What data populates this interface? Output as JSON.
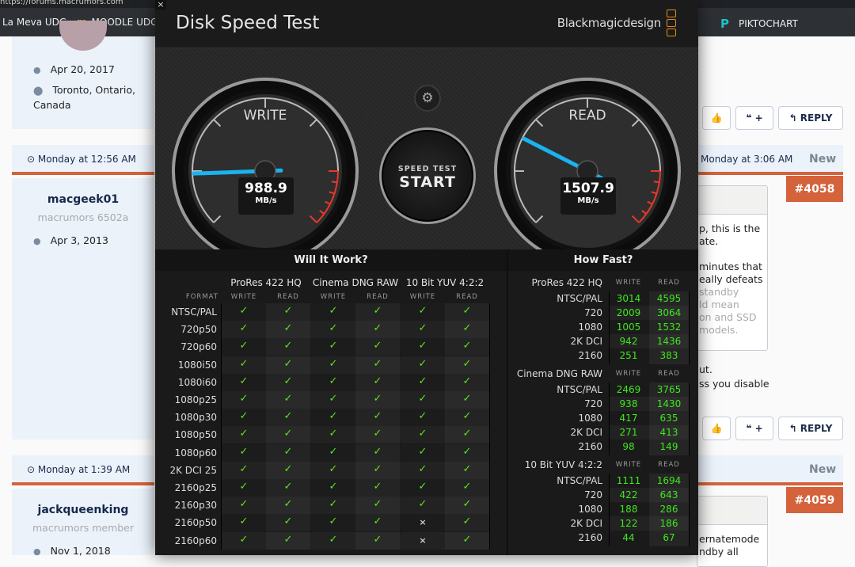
{
  "browser": {
    "url": "https://forums.macrumors.com",
    "bookmarks": [
      {
        "label": "La Meva UDG"
      },
      {
        "label": "MOODLE UDG"
      },
      {
        "label": "PIKTOCHART"
      }
    ]
  },
  "forum": {
    "post1": {
      "joined": "Apr 20, 2017",
      "location": "Toronto, Ontario, Canada"
    },
    "post2": {
      "time": "Monday at 12:56 AM",
      "username": "macgeek01",
      "user_title": "macrumors 6502a",
      "joined": "Apr 3, 2013",
      "right_time": "Monday at 3:06 AM",
      "new_label": "New",
      "post_number": "#4058",
      "quote_lines": [
        "p, this is the",
        "ate.",
        "",
        "minutes that",
        "eally defeats",
        "standby",
        "ld mean",
        "on and SSD",
        "models."
      ],
      "text_lines": [
        "ut.",
        "ss you disable"
      ]
    },
    "post3": {
      "time": "Monday at 1:39 AM",
      "username": "jackqueenking",
      "user_title": "macrumors member",
      "joined": "Nov 1, 2018",
      "new_label": "New",
      "post_number": "#4059",
      "quote_lines": [
        "ernatemode",
        "ndby all"
      ]
    },
    "buttons": {
      "like": "👍",
      "quote": "❝ +",
      "reply": "↰ REPLY"
    }
  },
  "app": {
    "title": "Disk Speed Test",
    "brand": "Blackmagicdesign",
    "close": "×",
    "write": {
      "label": "WRITE",
      "value": "988.9",
      "unit": "MB/s"
    },
    "read": {
      "label": "READ",
      "value": "1507.9",
      "unit": "MB/s"
    },
    "start": {
      "line1": "SPEED TEST",
      "line2": "START"
    },
    "needle_color": "#19b4f0",
    "redline_color": "#e8392a",
    "will_it_work": {
      "title": "Will It Work?",
      "format_label": "FORMAT",
      "write_label": "WRITE",
      "read_label": "READ",
      "groups": [
        "ProRes 422 HQ",
        "Cinema DNG RAW",
        "10 Bit YUV 4:2:2"
      ],
      "rows": [
        {
          "format": "NTSC/PAL",
          "results": [
            "✓",
            "✓",
            "✓",
            "✓",
            "✓",
            "✓"
          ]
        },
        {
          "format": "720p50",
          "results": [
            "✓",
            "✓",
            "✓",
            "✓",
            "✓",
            "✓"
          ]
        },
        {
          "format": "720p60",
          "results": [
            "✓",
            "✓",
            "✓",
            "✓",
            "✓",
            "✓"
          ]
        },
        {
          "format": "1080i50",
          "results": [
            "✓",
            "✓",
            "✓",
            "✓",
            "✓",
            "✓"
          ]
        },
        {
          "format": "1080i60",
          "results": [
            "✓",
            "✓",
            "✓",
            "✓",
            "✓",
            "✓"
          ]
        },
        {
          "format": "1080p25",
          "results": [
            "✓",
            "✓",
            "✓",
            "✓",
            "✓",
            "✓"
          ]
        },
        {
          "format": "1080p30",
          "results": [
            "✓",
            "✓",
            "✓",
            "✓",
            "✓",
            "✓"
          ]
        },
        {
          "format": "1080p50",
          "results": [
            "✓",
            "✓",
            "✓",
            "✓",
            "✓",
            "✓"
          ]
        },
        {
          "format": "1080p60",
          "results": [
            "✓",
            "✓",
            "✓",
            "✓",
            "✓",
            "✓"
          ]
        },
        {
          "format": "2K DCI 25",
          "results": [
            "✓",
            "✓",
            "✓",
            "✓",
            "✓",
            "✓"
          ]
        },
        {
          "format": "2160p25",
          "results": [
            "✓",
            "✓",
            "✓",
            "✓",
            "✓",
            "✓"
          ]
        },
        {
          "format": "2160p30",
          "results": [
            "✓",
            "✓",
            "✓",
            "✓",
            "✓",
            "✓"
          ]
        },
        {
          "format": "2160p50",
          "results": [
            "✓",
            "✓",
            "✓",
            "✓",
            "×",
            "✓"
          ]
        },
        {
          "format": "2160p60",
          "results": [
            "✓",
            "✓",
            "✓",
            "✓",
            "×",
            "✓"
          ]
        }
      ]
    },
    "how_fast": {
      "title": "How Fast?",
      "write_label": "WRITE",
      "read_label": "READ",
      "groups": [
        {
          "name": "ProRes 422 HQ",
          "rows": [
            {
              "format": "NTSC/PAL",
              "write": "3014",
              "read": "4595"
            },
            {
              "format": "720",
              "write": "2009",
              "read": "3064"
            },
            {
              "format": "1080",
              "write": "1005",
              "read": "1532"
            },
            {
              "format": "2K DCI",
              "write": "942",
              "read": "1436"
            },
            {
              "format": "2160",
              "write": "251",
              "read": "383"
            }
          ]
        },
        {
          "name": "Cinema DNG RAW",
          "rows": [
            {
              "format": "NTSC/PAL",
              "write": "2469",
              "read": "3765"
            },
            {
              "format": "720",
              "write": "938",
              "read": "1430"
            },
            {
              "format": "1080",
              "write": "417",
              "read": "635"
            },
            {
              "format": "2K DCI",
              "write": "271",
              "read": "413"
            },
            {
              "format": "2160",
              "write": "98",
              "read": "149"
            }
          ]
        },
        {
          "name": "10 Bit YUV 4:2:2",
          "rows": [
            {
              "format": "NTSC/PAL",
              "write": "1111",
              "read": "1694"
            },
            {
              "format": "720",
              "write": "422",
              "read": "643"
            },
            {
              "format": "1080",
              "write": "188",
              "read": "286"
            },
            {
              "format": "2K DCI",
              "write": "122",
              "read": "186"
            },
            {
              "format": "2160",
              "write": "44",
              "read": "67"
            }
          ]
        }
      ]
    }
  }
}
